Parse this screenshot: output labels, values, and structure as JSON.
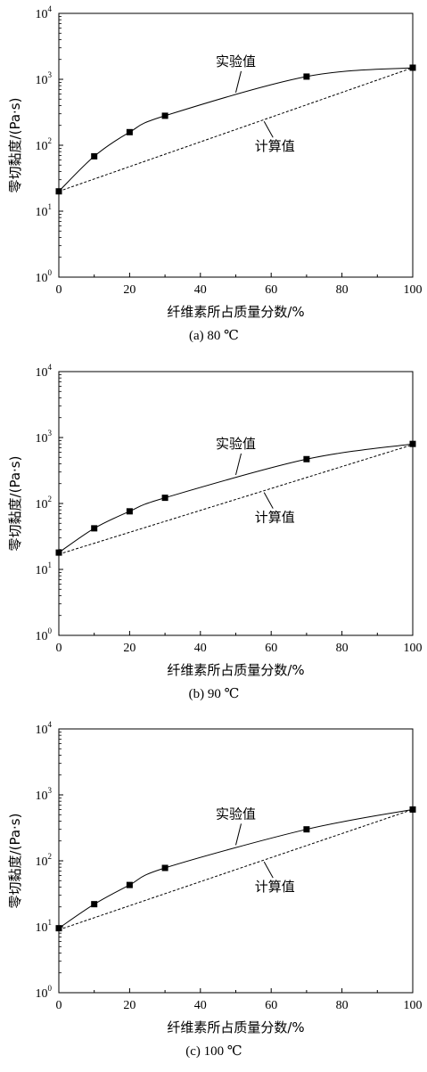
{
  "chart_data": [
    {
      "type": "line",
      "caption": "(a)  80 ℃",
      "xlabel": "纤维素所占质量分数/%",
      "ylabel": "零切黏度/(Pa·s)",
      "xlim": [
        0,
        100
      ],
      "ylim": [
        1,
        10000
      ],
      "yscale": "log",
      "xticks": [
        "0",
        "20",
        "40",
        "60",
        "80",
        "100"
      ],
      "yticks": [
        {
          "base": "10",
          "exp": "0"
        },
        {
          "base": "10",
          "exp": "1"
        },
        {
          "base": "10",
          "exp": "2"
        },
        {
          "base": "10",
          "exp": "3"
        },
        {
          "base": "10",
          "exp": "4"
        }
      ],
      "series": [
        {
          "name": "实验值",
          "style": "solid-with-markers",
          "x": [
            0,
            10,
            20,
            30,
            70,
            100
          ],
          "y": [
            20,
            68,
            158,
            280,
            1100,
            1500
          ]
        },
        {
          "name": "计算值",
          "style": "dashed",
          "x": [
            0,
            100
          ],
          "y": [
            20,
            1500
          ]
        }
      ]
    },
    {
      "type": "line",
      "caption": "(b)  90 ℃",
      "xlabel": "纤维素所占质量分数/%",
      "ylabel": "零切黏度/(Pa·s)",
      "xlim": [
        0,
        100
      ],
      "ylim": [
        1,
        10000
      ],
      "yscale": "log",
      "xticks": [
        "0",
        "20",
        "40",
        "60",
        "80",
        "100"
      ],
      "yticks": [
        {
          "base": "10",
          "exp": "0"
        },
        {
          "base": "10",
          "exp": "1"
        },
        {
          "base": "10",
          "exp": "2"
        },
        {
          "base": "10",
          "exp": "3"
        },
        {
          "base": "10",
          "exp": "4"
        }
      ],
      "series": [
        {
          "name": "实验值",
          "style": "solid-with-markers",
          "x": [
            0,
            10,
            20,
            30,
            70,
            100
          ],
          "y": [
            18,
            42,
            76,
            122,
            470,
            800
          ]
        },
        {
          "name": "计算值",
          "style": "dashed",
          "x": [
            0,
            100
          ],
          "y": [
            17,
            780
          ]
        }
      ]
    },
    {
      "type": "line",
      "caption": "(c) 100  ℃",
      "xlabel": "纤维素所占质量分数/%",
      "ylabel": "零切黏度/(Pa·s)",
      "xlim": [
        0,
        100
      ],
      "ylim": [
        1,
        10000
      ],
      "yscale": "log",
      "xticks": [
        "0",
        "20",
        "40",
        "60",
        "80",
        "100"
      ],
      "yticks": [
        {
          "base": "10",
          "exp": "0"
        },
        {
          "base": "10",
          "exp": "1"
        },
        {
          "base": "10",
          "exp": "2"
        },
        {
          "base": "10",
          "exp": "3"
        },
        {
          "base": "10",
          "exp": "4"
        }
      ],
      "series": [
        {
          "name": "实验值",
          "style": "solid-with-markers",
          "x": [
            0,
            10,
            20,
            30,
            70,
            100
          ],
          "y": [
            9.5,
            22,
            43,
            78,
            300,
            600
          ]
        },
        {
          "name": "计算值",
          "style": "dashed",
          "x": [
            0,
            100
          ],
          "y": [
            9,
            600
          ]
        }
      ]
    }
  ]
}
